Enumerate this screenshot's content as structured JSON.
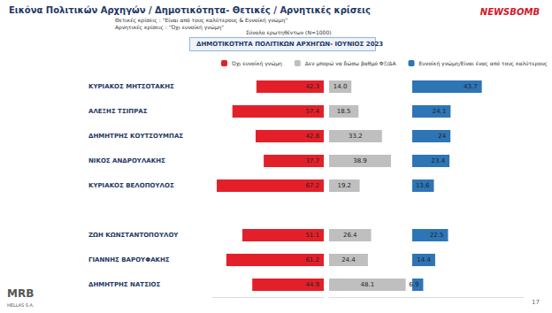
{
  "chart_data": {
    "type": "bar",
    "orientation": "horizontal",
    "title": "Εικόνα Πολιτικών Αρχηγών / Δημοτικότητα- Θετικές / Αρνητικές κρίσεις",
    "notes": [
      "Θετικές κρίσεις : \"Είναι από τους καλύτερους & Ευνοϊκή γνώμη\"",
      "Αρνητικές κρίσεις : \"Όχι ευνοϊκή γνώμη\""
    ],
    "sample_note": "Σύνολο ερωτηθέντων (N=1000)",
    "subtitle": "ΔΗΜΟΤΙΚΟΤΗΤΑ ΠΟΛΙΤΙΚΩΝ ΑΡΧΗΓΩΝ- ΙΟΥΝΙΟΣ 2023",
    "logo": "NEWSBOMB",
    "footer_logo": [
      "MRB",
      "HELLAS S.A."
    ],
    "page": "17",
    "categories": [
      "ΚΥΡΙΑΚΟΣ ΜΗΤΣΟΤΑΚΗΣ",
      "ΑΛΕΞΗΣ ΤΣΙΠΡΑΣ",
      "ΔΗΜΗΤΡΗΣ ΚΟΥΤΣΟΥΜΠΑΣ",
      "ΝΙΚΟΣ ΑΝΔΡΟΥΛΑΚΗΣ",
      "ΚΥΡΙΑΚΟΣ ΒΕΛΟΠΟΥΛΟΣ",
      null,
      "ΖΩΗ ΚΩΝΣΤΑΝΤΟΠΟΥΛΟΥ",
      "ΓΙΑΝΝΗΣ ΒΑΡΟΥΦΑΚΗΣ",
      "ΔΗΜΗΤΡΗΣ ΝΑΤΣΙΟΣ"
    ],
    "series": [
      {
        "name": "Όχι ευνοϊκή γνώμη",
        "color": "#e3202a",
        "values": [
          42.3,
          57.4,
          42.8,
          37.7,
          67.2,
          null,
          51.1,
          61.2,
          44.9
        ]
      },
      {
        "name": "Δεν μπορώ να δώσω βαθμό ΦΞ/ΔΑ",
        "color": "#bfbfbf",
        "values": [
          14.0,
          18.5,
          33.2,
          38.9,
          19.2,
          null,
          26.4,
          24.4,
          48.1
        ],
        "value_labels": [
          "14.0",
          "18.5",
          "33.2",
          "38.9",
          "19.2",
          null,
          "26.4",
          "24.4",
          "48.1"
        ]
      },
      {
        "name": "Ευνοϊκή γνώμη/Είναι ένας από τους καλύτερους",
        "color": "#2e75b6",
        "values": [
          43.7,
          24.1,
          24,
          23.4,
          13.6,
          null,
          22.5,
          14.4,
          6.9
        ]
      }
    ],
    "xlim": [
      0,
      70
    ],
    "grid": false,
    "legend": "top",
    "data_labels": true,
    "tick_labels": "y"
  }
}
